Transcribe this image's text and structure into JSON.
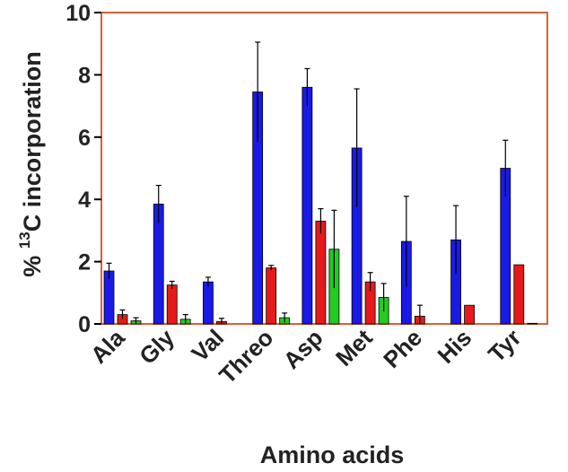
{
  "chart_data": {
    "type": "bar",
    "categories": [
      "Ala",
      "Gly",
      "Val",
      "Threo",
      "Asp",
      "Met",
      "Phe",
      "His",
      "Tyr"
    ],
    "series": [
      {
        "color": "#1a1ae6",
        "values": [
          1.7,
          3.85,
          1.35,
          7.45,
          7.6,
          5.65,
          2.65,
          2.7,
          5.0
        ],
        "errors": [
          0.25,
          0.6,
          0.15,
          1.6,
          0.6,
          1.9,
          1.45,
          1.1,
          0.9
        ]
      },
      {
        "color": "#e61a1a",
        "values": [
          0.3,
          1.25,
          0.08,
          1.8,
          3.3,
          1.35,
          0.25,
          0.6,
          1.9
        ],
        "errors": [
          0.15,
          0.12,
          0.1,
          0.08,
          0.4,
          0.3,
          0.35,
          0,
          0
        ]
      },
      {
        "color": "#22cc22",
        "values": [
          0.1,
          0.15,
          0,
          0.2,
          2.4,
          0.85,
          0,
          0,
          0.02
        ],
        "errors": [
          0.1,
          0.15,
          0,
          0.15,
          1.25,
          0.45,
          0,
          0,
          0
        ]
      }
    ],
    "y_ticks": [
      "0",
      "2",
      "4",
      "6",
      "8",
      "10"
    ],
    "ylim": [
      0,
      10
    ],
    "xlabel": "Amino acids",
    "ylabel_prefix": "% ",
    "ylabel_superscript": "13",
    "ylabel_suffix": "C incorporation",
    "grid": false,
    "frame_color": "#d9603b"
  }
}
